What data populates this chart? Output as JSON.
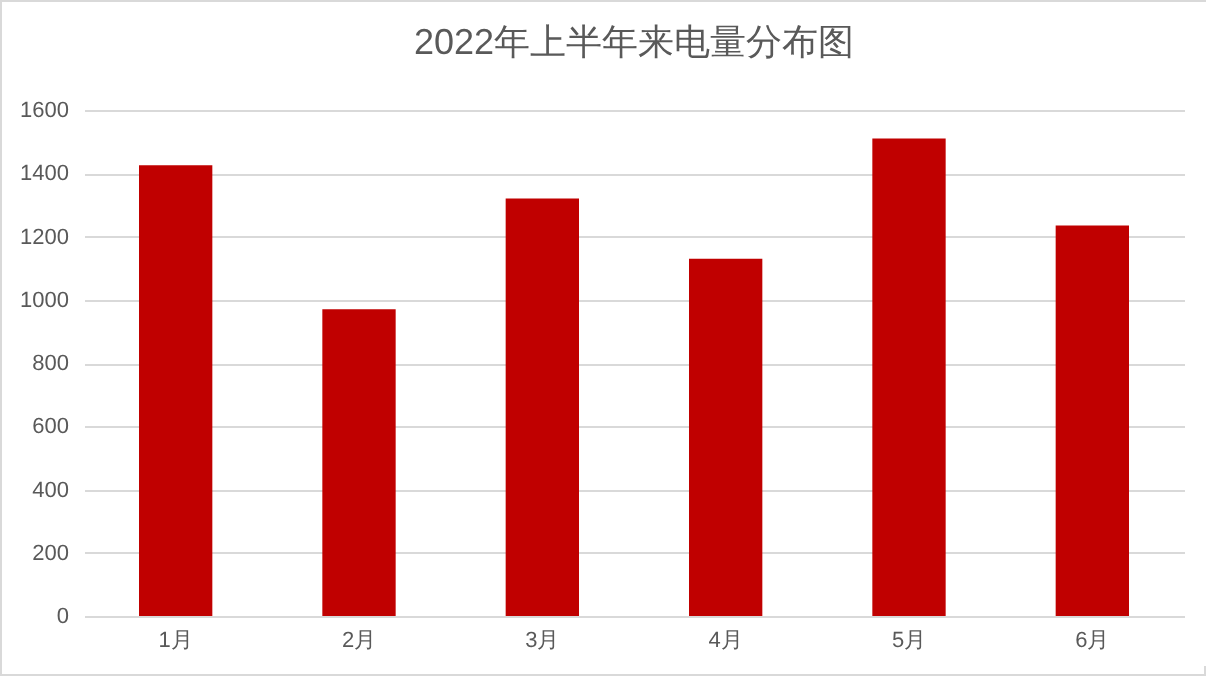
{
  "chart_data": {
    "type": "bar",
    "title": "2022年上半年来电量分布图",
    "categories": [
      "1月",
      "2月",
      "3月",
      "4月",
      "5月",
      "6月"
    ],
    "values": [
      1425,
      970,
      1320,
      1130,
      1510,
      1235
    ],
    "color": "#c00000",
    "ylim": [
      0,
      1600
    ],
    "yticks": [
      0,
      200,
      400,
      600,
      800,
      1000,
      1200,
      1400,
      1600
    ],
    "grid": "y"
  }
}
